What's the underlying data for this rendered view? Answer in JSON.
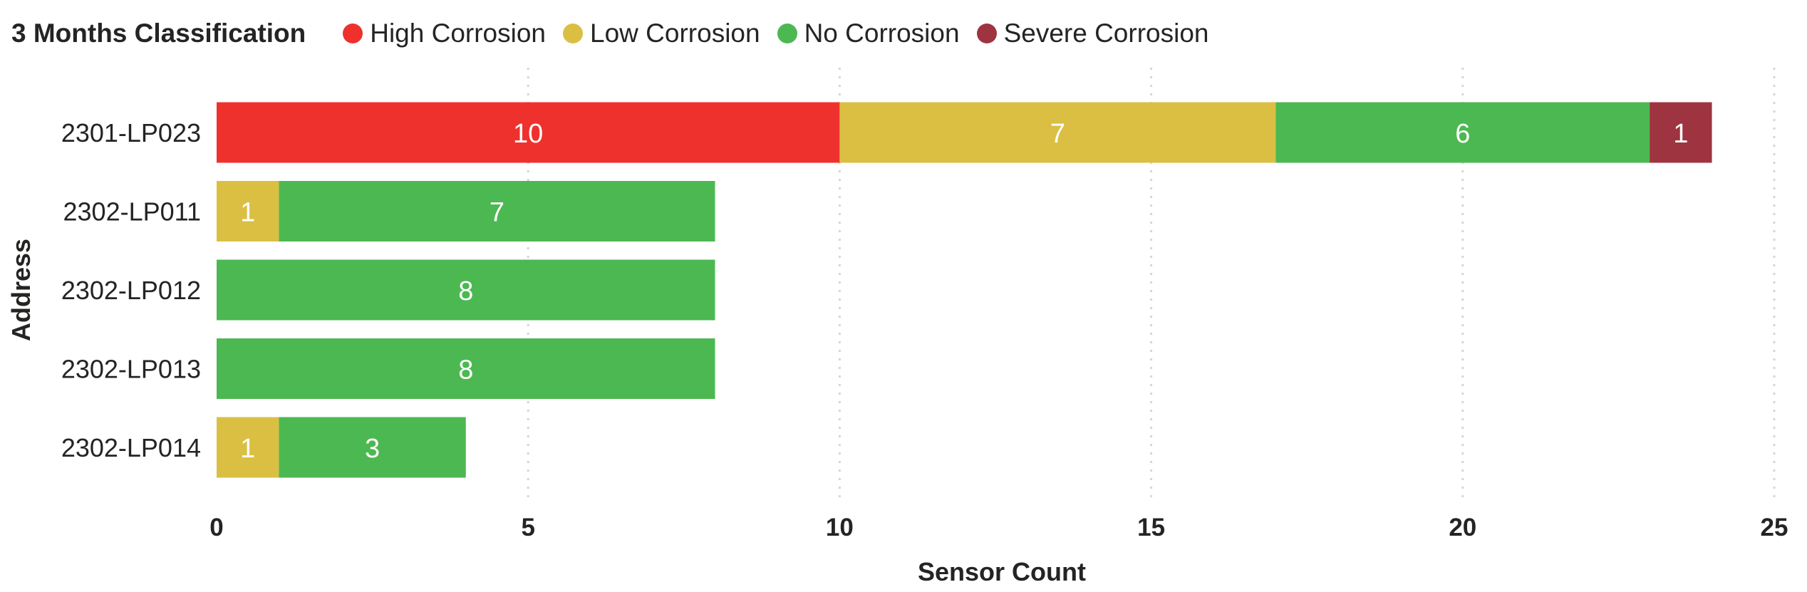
{
  "chart_data": {
    "type": "bar",
    "orientation": "horizontal",
    "stacked": true,
    "title": "3 Months Classification",
    "xlabel": "Sensor Count",
    "ylabel": "Address",
    "xlim": [
      0,
      25
    ],
    "x_ticks": [
      0,
      5,
      10,
      15,
      20,
      25
    ],
    "grid": "vertical dotted",
    "legend_position": "top",
    "categories": [
      "2301-LP023",
      "2302-LP011",
      "2302-LP012",
      "2302-LP013",
      "2302-LP014"
    ],
    "series": [
      {
        "name": "High Corrosion",
        "color": "#ef312e",
        "values": [
          10,
          0,
          0,
          0,
          0
        ]
      },
      {
        "name": "Low Corrosion",
        "color": "#dbbf43",
        "values": [
          7,
          1,
          0,
          0,
          1
        ]
      },
      {
        "name": "No Corrosion",
        "color": "#4cb851",
        "values": [
          6,
          7,
          8,
          8,
          3
        ]
      },
      {
        "name": "Severe Corrosion",
        "color": "#9e343f",
        "values": [
          1,
          0,
          0,
          0,
          0
        ]
      }
    ]
  }
}
